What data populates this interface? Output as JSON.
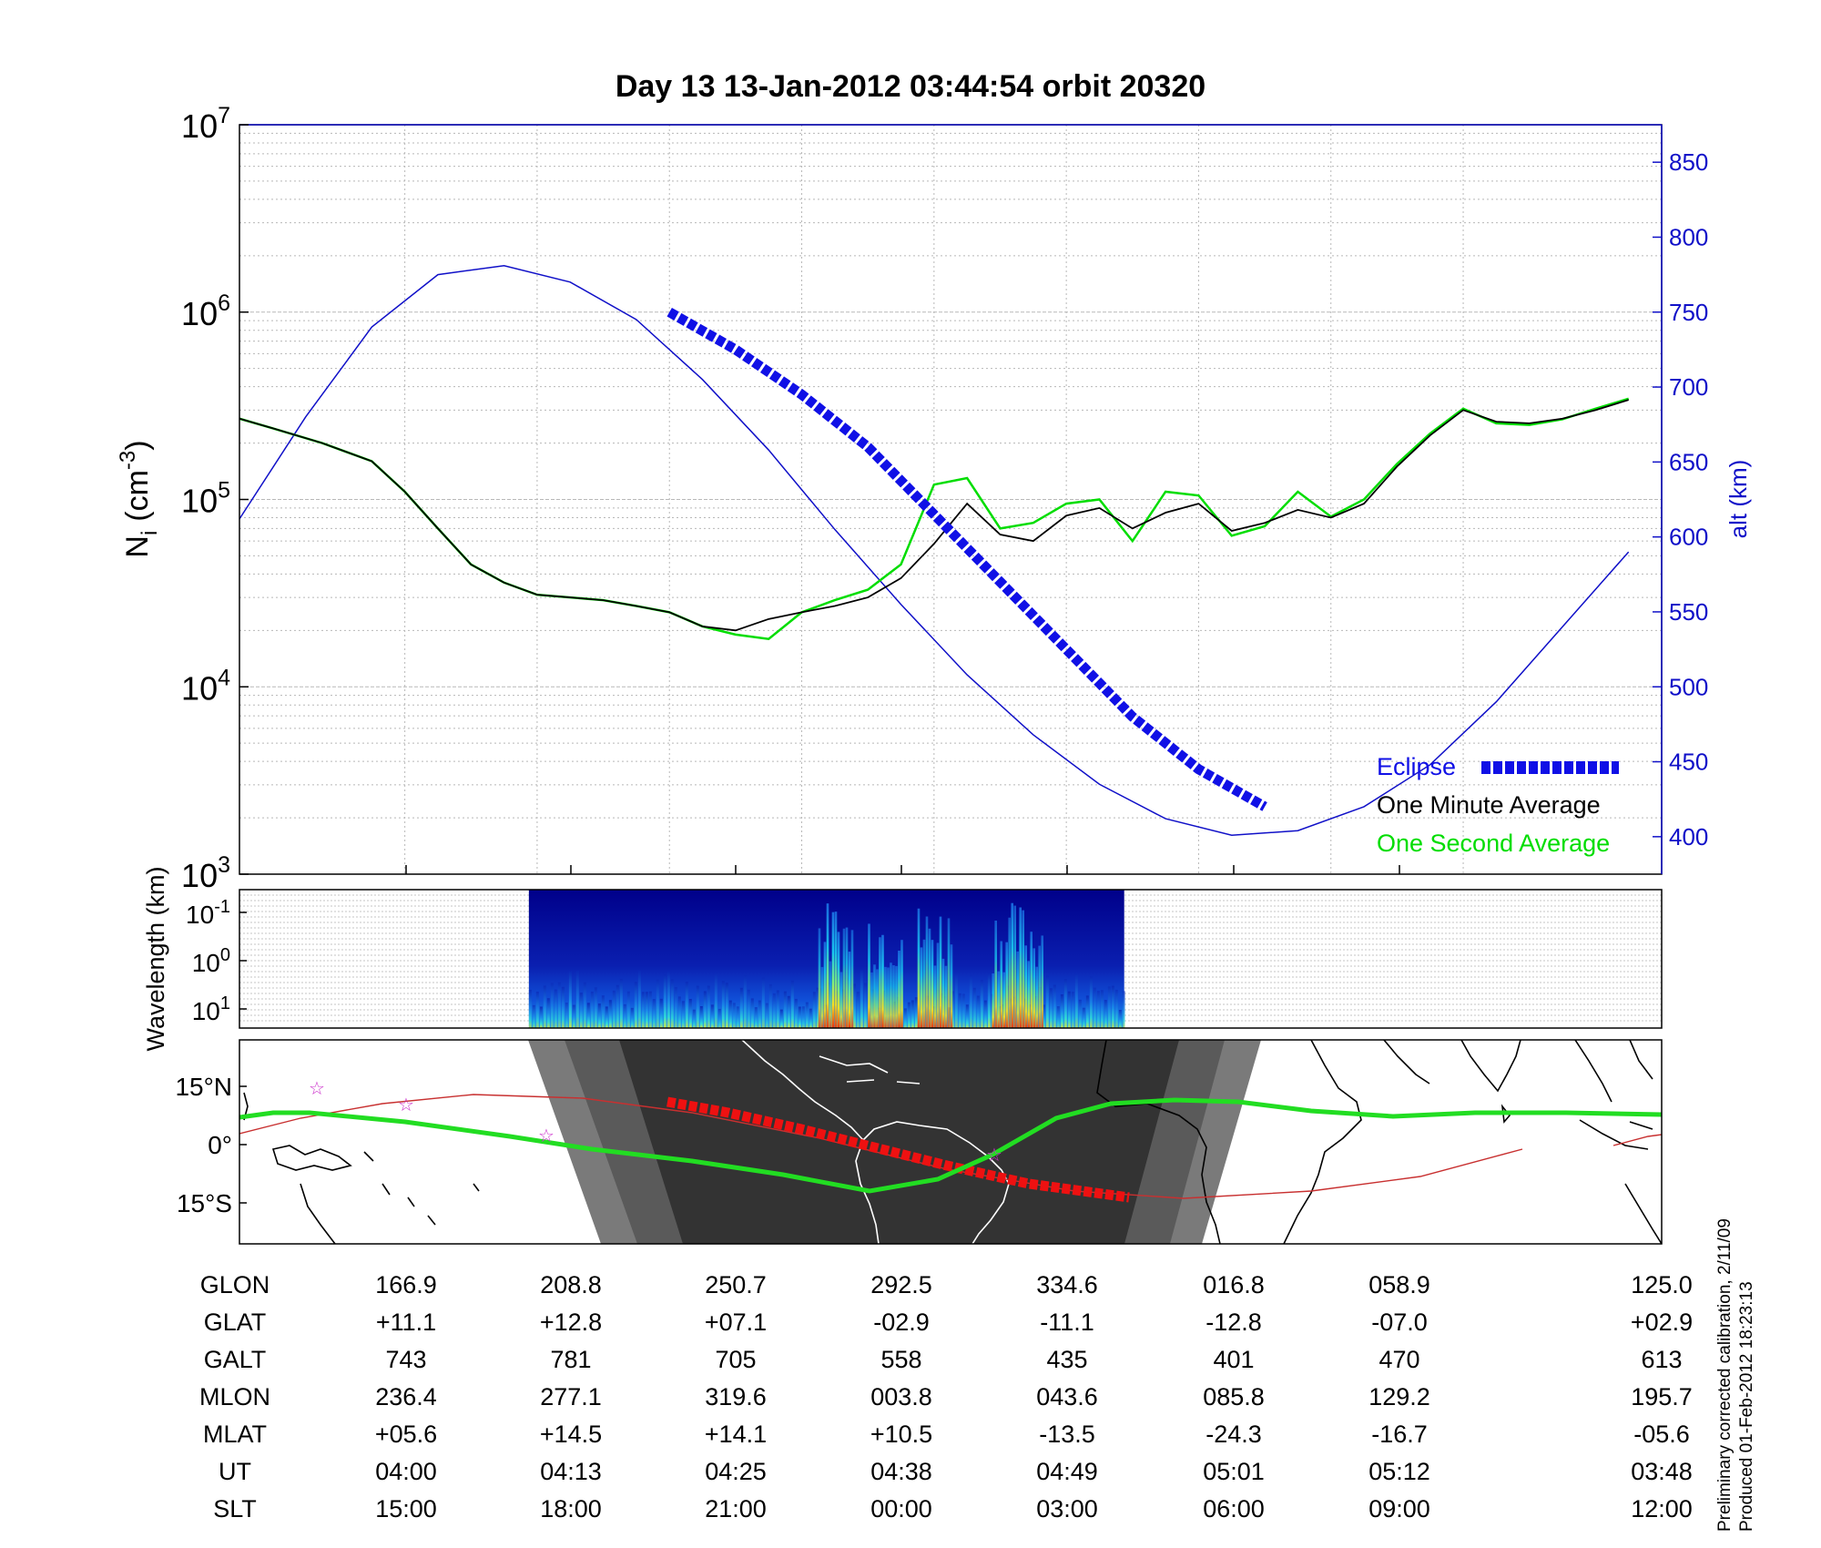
{
  "title": "Day 13  13-Jan-2012 03:44:54   orbit 20320",
  "colors": {
    "eclipse": "#1010e6",
    "one_minute": "#000000",
    "one_second": "#00dd00",
    "altitude": "#1010c8",
    "track_ground": "#22dd22",
    "track_eclipse": "#ee1111",
    "night": "#333333"
  },
  "chart_data": [
    {
      "type": "line",
      "panel": "density",
      "ylabel": "N_i (cm^-3)",
      "ylabel_main": "N",
      "ylabel_sub": "i",
      "ylabel_unit": "(cm",
      "ylabel_exp": "-3",
      "ylabel_close": ")",
      "yscale": "log",
      "ylim": [
        1000,
        10000000
      ],
      "y_ticks": [
        {
          "base": "10",
          "exp": "3"
        },
        {
          "base": "10",
          "exp": "4"
        },
        {
          "base": "10",
          "exp": "5"
        },
        {
          "base": "10",
          "exp": "6"
        },
        {
          "base": "10",
          "exp": "7"
        }
      ],
      "y2label": "alt (km)",
      "y2lim": [
        375,
        875
      ],
      "y2_ticks": [
        "400",
        "450",
        "500",
        "550",
        "600",
        "650",
        "700",
        "750",
        "800",
        "850"
      ],
      "x_ticks": [
        "04:00",
        "04:13",
        "04:25",
        "04:38",
        "04:49",
        "05:01",
        "05:12"
      ],
      "x_range_minutes": [
        228,
        314
      ],
      "series": [
        {
          "name": "One Minute Average",
          "x_minutes": [
            228,
            230,
            233,
            236,
            238,
            240,
            242,
            244,
            246,
            248,
            250,
            252,
            254,
            256,
            258,
            260,
            262,
            264,
            266,
            268,
            270,
            272,
            274,
            276,
            278,
            280,
            282,
            284,
            286,
            288,
            290,
            292,
            294,
            296,
            298,
            300,
            302,
            304,
            306,
            308,
            310,
            312
          ],
          "values": [
            270000,
            240000,
            200000,
            160000,
            110000,
            70000,
            45000,
            36000,
            31000,
            30000,
            29000,
            27000,
            25000,
            21000,
            20000,
            23000,
            25000,
            27000,
            30000,
            38000,
            58000,
            95000,
            65000,
            60000,
            82000,
            90000,
            70000,
            85000,
            95000,
            68000,
            75000,
            88000,
            80000,
            95000,
            150000,
            220000,
            300000,
            260000,
            255000,
            270000,
            300000,
            340000
          ]
        },
        {
          "name": "One Second Average",
          "x_minutes": [
            228,
            230,
            233,
            236,
            238,
            240,
            242,
            244,
            246,
            248,
            250,
            252,
            254,
            256,
            258,
            260,
            262,
            264,
            266,
            268,
            270,
            272,
            274,
            276,
            278,
            280,
            282,
            284,
            286,
            288,
            290,
            292,
            294,
            296,
            298,
            300,
            302,
            304,
            306,
            308,
            310,
            312
          ],
          "values": [
            270000,
            240000,
            200000,
            160000,
            110000,
            70000,
            45000,
            36000,
            31000,
            30000,
            29000,
            27000,
            25000,
            21000,
            19000,
            18000,
            25000,
            29000,
            33000,
            45000,
            120000,
            130000,
            70000,
            75000,
            95000,
            100000,
            60000,
            110000,
            105000,
            64000,
            72000,
            110000,
            81000,
            100000,
            155000,
            225000,
            305000,
            255000,
            250000,
            268000,
            305000,
            345000
          ]
        },
        {
          "name": "Altitude",
          "axis": "right",
          "x_minutes": [
            228,
            232,
            236,
            240,
            244,
            248,
            252,
            256,
            260,
            264,
            268,
            272,
            276,
            280,
            284,
            288,
            292,
            296,
            300,
            304,
            308,
            312
          ],
          "values": [
            612,
            680,
            740,
            775,
            781,
            770,
            745,
            705,
            658,
            605,
            555,
            508,
            468,
            435,
            412,
            401,
            404,
            420,
            448,
            490,
            540,
            590
          ]
        },
        {
          "name": "Eclipse",
          "axis": "right",
          "x_minutes": [
            254,
            258,
            262,
            266,
            270,
            274,
            278,
            282,
            286,
            290
          ],
          "values": [
            750,
            725,
            695,
            660,
            615,
            570,
            525,
            480,
            445,
            420
          ]
        }
      ],
      "legend": [
        "Eclipse",
        "One Minute Average",
        "One Second Average"
      ],
      "legend_placement": "bottom-right",
      "grid": true
    },
    {
      "type": "heatmap",
      "panel": "spectrogram",
      "ylabel": "Wavelength (km)",
      "y_ticks": [
        {
          "base": "10",
          "exp": "-1"
        },
        {
          "base": "10",
          "exp": "0"
        },
        {
          "base": "10",
          "exp": "1"
        }
      ],
      "data_window_minutes": [
        245.5,
        281.5
      ],
      "intense_intervals_minutes": [
        [
          263,
          265
        ],
        [
          266,
          268
        ],
        [
          269,
          271
        ],
        [
          273.5,
          276.5
        ]
      ]
    },
    {
      "type": "map",
      "panel": "ground_track",
      "y_ticks": [
        "15°N",
        "0°",
        "15°S"
      ],
      "ground_track": {
        "lon": [
          166.9,
          208.8,
          250.7,
          292.5,
          334.6,
          16.8,
          58.9,
          125.0
        ],
        "lat": [
          11.1,
          12.8,
          7.1,
          -2.9,
          -11.1,
          -12.8,
          -7.0,
          2.9
        ]
      },
      "magnetic_equator_track": true,
      "stars_count": 4
    }
  ],
  "table": {
    "row_labels": [
      "GLON",
      "GLAT",
      "GALT",
      "MLON",
      "MLAT",
      "UT",
      "SLT"
    ],
    "columns": [
      [
        "166.9",
        "+11.1",
        "743",
        "236.4",
        "+05.6",
        "04:00",
        "15:00"
      ],
      [
        "208.8",
        "+12.8",
        "781",
        "277.1",
        "+14.5",
        "04:13",
        "18:00"
      ],
      [
        "250.7",
        "+07.1",
        "705",
        "319.6",
        "+14.1",
        "04:25",
        "21:00"
      ],
      [
        "292.5",
        "-02.9",
        "558",
        "003.8",
        "+10.5",
        "04:38",
        "00:00"
      ],
      [
        "334.6",
        "-11.1",
        "435",
        "043.6",
        "-13.5",
        "04:49",
        "03:00"
      ],
      [
        "016.8",
        "-12.8",
        "401",
        "085.8",
        "-24.3",
        "05:01",
        "06:00"
      ],
      [
        "058.9",
        "-07.0",
        "470",
        "129.2",
        "-16.7",
        "05:12",
        "09:00"
      ],
      [
        "125.0",
        "+02.9",
        "613",
        "195.7",
        "-05.6",
        "03:48",
        "12:00"
      ]
    ]
  },
  "side_notes": [
    "Preliminary corrected calibration, 2/11/09",
    "Produced 01-Feb-2012 18:23:13"
  ]
}
